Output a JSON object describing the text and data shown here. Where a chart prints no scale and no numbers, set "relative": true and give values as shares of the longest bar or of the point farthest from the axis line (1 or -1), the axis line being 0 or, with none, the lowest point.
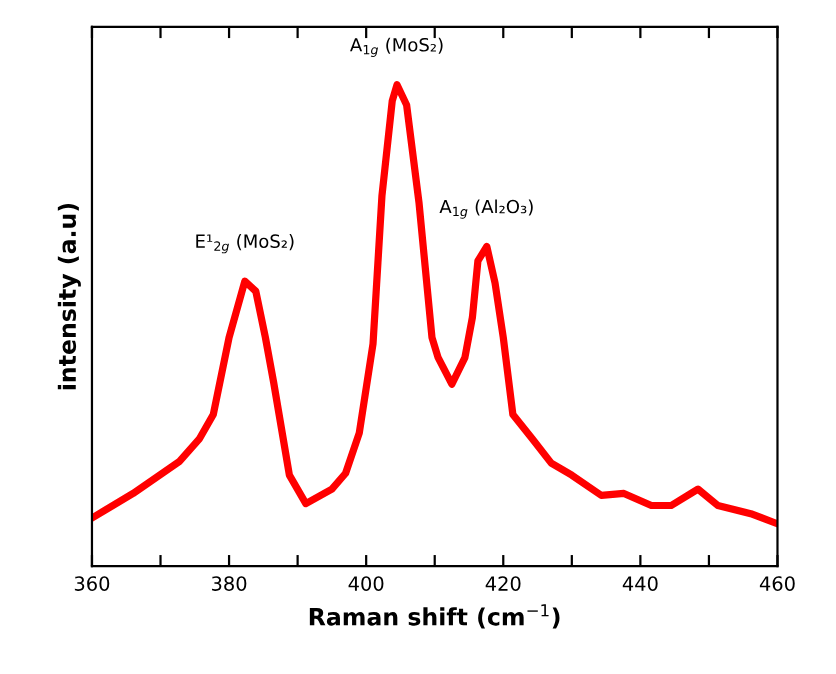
{
  "chart_data": {
    "type": "line",
    "relative": true,
    "xlabel": "Raman shift (cm$^{−1}$)",
    "ylabel": "intensity (a.u)",
    "xlim": [
      360,
      460
    ],
    "xticks": [
      360,
      {
        "value": 370,
        "label": null
      },
      380,
      {
        "value": 390,
        "label": null
      },
      400,
      {
        "value": 410,
        "label": null
      },
      420,
      {
        "value": 430,
        "label": null
      },
      440,
      {
        "value": 450,
        "label": null
      },
      460
    ],
    "grid": false,
    "legend": false,
    "marker": "none",
    "line_style": "solid",
    "series": [
      {
        "color": "#ff0000",
        "x": [
          360,
          366,
          372.8,
          375.7,
          377.7,
          380,
          382.3,
          383.9,
          385.3,
          386.5,
          388.8,
          391.2,
          395,
          397,
          399,
          401,
          402.3,
          403.8,
          404.5,
          405.9,
          407.7,
          409.6,
          410.5,
          412.5,
          414.4,
          415.5,
          416.3,
          417.6,
          418.8,
          420,
          421.4,
          424.2,
          427,
          430,
          434.3,
          437.6,
          441.6,
          444.5,
          448.4,
          451.3,
          456.1,
          460
        ],
        "values": [
          0.1,
          0.151,
          0.218,
          0.265,
          0.315,
          0.475,
          0.592,
          0.571,
          0.475,
          0.382,
          0.189,
          0.13,
          0.16,
          0.193,
          0.277,
          0.462,
          0.769,
          0.966,
          1.0,
          0.958,
          0.756,
          0.475,
          0.433,
          0.378,
          0.433,
          0.517,
          0.634,
          0.664,
          0.588,
          0.475,
          0.315,
          0.265,
          0.214,
          0.189,
          0.147,
          0.151,
          0.126,
          0.126,
          0.16,
          0.126,
          0.109,
          0.088
        ]
      }
    ],
    "annotations": [
      {
        "text": "E¹$_{2g}$ (MoS₂)",
        "x": 382.3,
        "y": 0.592
      },
      {
        "text": "A$_{1g}$ (MoS₂)",
        "x": 404.5,
        "y": 1.0
      },
      {
        "text": "A$_{1g}$ (Al₂O₃)",
        "x": 417.6,
        "y": 0.664
      }
    ]
  }
}
